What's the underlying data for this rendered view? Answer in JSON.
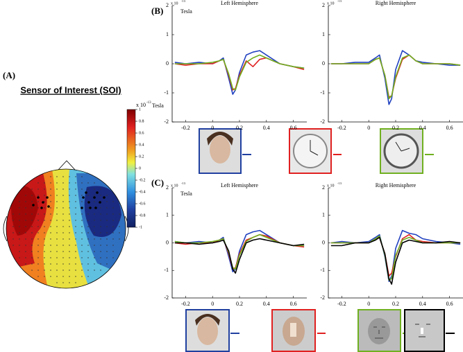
{
  "panels": {
    "a": "(A)",
    "b": "(B)",
    "c": "(C)"
  },
  "topomap": {
    "title": "Sensor of Interest (SOI)",
    "colorbar_multiplier": "x 10",
    "colorbar_exponent": "-13",
    "colorbar_unit": "Tesla",
    "colorbar_lim": [
      -1,
      1
    ],
    "colorbar_ticks": [
      1,
      0.8,
      0.6,
      0.4,
      0.2,
      0,
      -0.2,
      -0.4,
      -0.6,
      -0.8,
      -1
    ]
  },
  "chart_data": [
    {
      "type": "line",
      "title": "Left Hemisphere",
      "unit": "Tesla",
      "multiplier": "x 10",
      "exponent": "-13",
      "x": [
        -0.28,
        -0.2,
        -0.1,
        0,
        0.05,
        0.08,
        0.12,
        0.15,
        0.17,
        0.2,
        0.25,
        0.3,
        0.35,
        0.4,
        0.5,
        0.6,
        0.68
      ],
      "xlim": [
        -0.3,
        0.7
      ],
      "xticks": [
        -0.2,
        0,
        0.2,
        0.4,
        0.6
      ],
      "ylim": [
        -2,
        2
      ],
      "yticks": [
        -2,
        -1,
        0,
        1,
        2
      ],
      "series": [
        {
          "color": "#2040c0",
          "values": [
            0.05,
            0,
            0.05,
            0,
            0.1,
            0.2,
            -0.5,
            -1.05,
            -0.9,
            -0.3,
            0.3,
            0.4,
            0.45,
            0.3,
            0,
            -0.1,
            -0.15
          ]
        },
        {
          "color": "#e02020",
          "values": [
            0,
            -0.05,
            0,
            0,
            0.1,
            0.15,
            -0.4,
            -0.9,
            -0.85,
            -0.4,
            0.1,
            -0.1,
            0.15,
            0.2,
            0,
            -0.1,
            -0.2
          ]
        },
        {
          "color": "#70b020",
          "values": [
            0,
            0,
            0,
            0.05,
            0.1,
            0.15,
            -0.35,
            -0.85,
            -0.9,
            -0.45,
            0.05,
            0.2,
            0.3,
            0.2,
            0,
            -0.1,
            -0.15
          ]
        }
      ]
    },
    {
      "type": "line",
      "title": "Right Hemisphere",
      "multiplier": "x 10",
      "exponent": "-13",
      "x": [
        -0.28,
        -0.2,
        -0.1,
        0,
        0.05,
        0.08,
        0.12,
        0.15,
        0.17,
        0.2,
        0.25,
        0.3,
        0.35,
        0.4,
        0.5,
        0.6,
        0.68
      ],
      "xlim": [
        -0.3,
        0.7
      ],
      "xticks": [
        -0.2,
        0,
        0.2,
        0.4,
        0.6
      ],
      "ylim": [
        -2,
        2
      ],
      "yticks": [
        -2,
        -1,
        0,
        1,
        2
      ],
      "series": [
        {
          "color": "#2040c0",
          "values": [
            0,
            0,
            0.05,
            0.05,
            0.2,
            0.3,
            -0.5,
            -1.4,
            -1.2,
            -0.2,
            0.45,
            0.3,
            0.1,
            0.05,
            0,
            -0.05,
            -0.05
          ]
        },
        {
          "color": "#e02020",
          "values": [
            0,
            0,
            0,
            0,
            0.15,
            0.2,
            -0.4,
            -1.15,
            -1.1,
            -0.5,
            0.15,
            0.3,
            0.1,
            0,
            0,
            0,
            -0.05
          ]
        },
        {
          "color": "#70b020",
          "values": [
            0,
            0,
            0,
            0,
            0.15,
            0.2,
            -0.4,
            -1.2,
            -1.1,
            -0.45,
            0.2,
            0.3,
            0.1,
            0,
            0,
            0,
            -0.05
          ]
        }
      ]
    },
    {
      "type": "line",
      "title": "Left Hemisphere",
      "unit": "Tesla",
      "multiplier": "x 10",
      "exponent": "-13",
      "x": [
        -0.28,
        -0.2,
        -0.1,
        0,
        0.05,
        0.08,
        0.12,
        0.15,
        0.17,
        0.2,
        0.25,
        0.3,
        0.35,
        0.4,
        0.5,
        0.6,
        0.68
      ],
      "xlim": [
        -0.3,
        0.7
      ],
      "xticks": [
        -0.2,
        0,
        0.2,
        0.4,
        0.6
      ],
      "ylim": [
        -2,
        2
      ],
      "yticks": [
        -2,
        -1,
        0,
        1,
        2
      ],
      "series": [
        {
          "color": "#2040c0",
          "values": [
            0.05,
            0,
            0.05,
            0,
            0.1,
            0.2,
            -0.5,
            -1.05,
            -0.95,
            -0.3,
            0.3,
            0.4,
            0.45,
            0.3,
            0,
            -0.1,
            -0.1
          ]
        },
        {
          "color": "#e02020",
          "values": [
            0,
            -0.05,
            0,
            0,
            0.1,
            0.15,
            -0.4,
            -0.95,
            -0.9,
            -0.4,
            0.1,
            0.2,
            0.3,
            0.25,
            0,
            -0.1,
            -0.15
          ]
        },
        {
          "color": "#70b020",
          "values": [
            0.05,
            0,
            0,
            0.05,
            0.1,
            0.15,
            -0.35,
            -0.9,
            -0.95,
            -0.45,
            0.05,
            0.2,
            0.3,
            0.2,
            0,
            -0.1,
            -0.1
          ]
        },
        {
          "color": "#000000",
          "values": [
            0,
            0,
            -0.05,
            0,
            0.05,
            0.1,
            -0.3,
            -0.95,
            -1.1,
            -0.6,
            0,
            0.1,
            0.15,
            0.1,
            0,
            -0.1,
            -0.05
          ]
        }
      ]
    },
    {
      "type": "line",
      "title": "Right Hemisphere",
      "multiplier": "x 10",
      "exponent": "-13",
      "x": [
        -0.28,
        -0.2,
        -0.1,
        0,
        0.05,
        0.08,
        0.12,
        0.15,
        0.17,
        0.2,
        0.25,
        0.3,
        0.35,
        0.4,
        0.5,
        0.6,
        0.68
      ],
      "xlim": [
        -0.3,
        0.7
      ],
      "xticks": [
        -0.2,
        0,
        0.2,
        0.4,
        0.6
      ],
      "ylim": [
        -2,
        2
      ],
      "yticks": [
        -2,
        -1,
        0,
        1,
        2
      ],
      "series": [
        {
          "color": "#2040c0",
          "values": [
            0,
            0.05,
            0,
            0.05,
            0.2,
            0.3,
            -0.5,
            -1.4,
            -1.2,
            -0.2,
            0.45,
            0.35,
            0.3,
            0.15,
            0.05,
            0,
            -0.05
          ]
        },
        {
          "color": "#e02020",
          "values": [
            0,
            0,
            0,
            0,
            0.15,
            0.2,
            -0.4,
            -1.2,
            -1.1,
            -0.5,
            0.15,
            0.3,
            0.1,
            0.05,
            0,
            0,
            0
          ]
        },
        {
          "color": "#70b020",
          "values": [
            0,
            0,
            0,
            0,
            0.15,
            0.25,
            -0.45,
            -1.35,
            -1.3,
            -0.45,
            0.1,
            0.2,
            0.1,
            0,
            0,
            0,
            0
          ]
        },
        {
          "color": "#000000",
          "values": [
            -0.1,
            -0.1,
            0,
            0,
            0.1,
            0.2,
            -0.4,
            -1.3,
            -1.5,
            -0.7,
            0,
            0.1,
            0.05,
            0,
            0,
            0.05,
            0
          ]
        }
      ]
    }
  ]
}
